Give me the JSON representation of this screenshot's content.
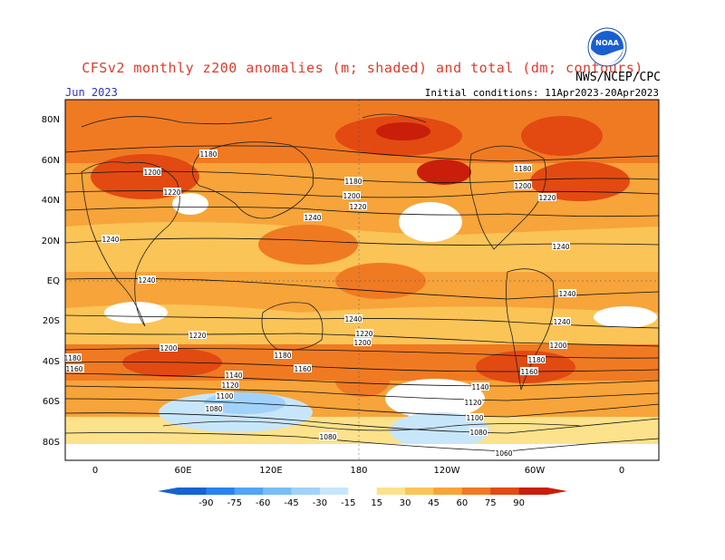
{
  "header": {
    "title": "CFSv2 monthly z200 anomalies (m; shaded) and total (dm; contours)",
    "agency": "NWS/NCEP/CPC",
    "month": "Jun 2023",
    "initial_conditions": "Initial conditions: 11Apr2023-20Apr2023",
    "logo_text": "NOAA"
  },
  "map": {
    "lat_labels": [
      "80N",
      "60N",
      "40N",
      "20N",
      "EQ",
      "20S",
      "40S",
      "60S",
      "80S"
    ],
    "lon_labels": [
      "0",
      "60E",
      "120E",
      "180",
      "120W",
      "60W",
      "0"
    ],
    "contour_labels": [
      {
        "text": "1180"
      },
      {
        "text": "1200"
      },
      {
        "text": "1220"
      },
      {
        "text": "1240"
      },
      {
        "text": "1180"
      },
      {
        "text": "1200"
      },
      {
        "text": "1220"
      },
      {
        "text": "1240"
      },
      {
        "text": "1180"
      },
      {
        "text": "1200"
      },
      {
        "text": "1220"
      },
      {
        "text": "1240"
      },
      {
        "text": "1240"
      },
      {
        "text": "1240"
      },
      {
        "text": "1240"
      },
      {
        "text": "1240"
      },
      {
        "text": "1220"
      },
      {
        "text": "1200"
      },
      {
        "text": "1220"
      },
      {
        "text": "1200"
      },
      {
        "text": "1180"
      },
      {
        "text": "1160"
      },
      {
        "text": "1200"
      },
      {
        "text": "1180"
      },
      {
        "text": "1180"
      },
      {
        "text": "1160"
      },
      {
        "text": "1160"
      },
      {
        "text": "1140"
      },
      {
        "text": "1120"
      },
      {
        "text": "1100"
      },
      {
        "text": "1080"
      },
      {
        "text": "1080"
      },
      {
        "text": "1060"
      },
      {
        "text": "1140"
      },
      {
        "text": "1120"
      },
      {
        "text": "1100"
      },
      {
        "text": "1080"
      },
      {
        "text": "1060"
      }
    ]
  },
  "colorbar": {
    "labels": [
      "-90",
      "-75",
      "-60",
      "-45",
      "-30",
      "-15",
      "15",
      "30",
      "45",
      "60",
      "75",
      "90"
    ],
    "colors": [
      "#1464d2",
      "#2882f0",
      "#50a5f5",
      "#78bef5",
      "#a0d2fa",
      "#c8e6fa",
      "#ffffff",
      "#fde28c",
      "#fbc457",
      "#f7a43a",
      "#f07a22",
      "#e24a12",
      "#c81e0a"
    ]
  }
}
